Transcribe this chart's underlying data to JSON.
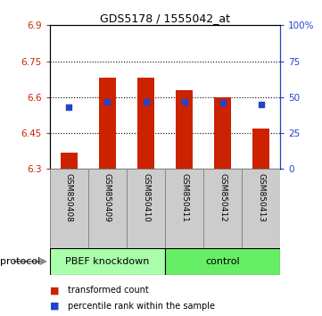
{
  "title": "GDS5178 / 1555042_at",
  "samples": [
    "GSM850408",
    "GSM850409",
    "GSM850410",
    "GSM850411",
    "GSM850412",
    "GSM850413"
  ],
  "bar_values": [
    6.37,
    6.68,
    6.68,
    6.63,
    6.6,
    6.47
  ],
  "bar_baseline": 6.3,
  "blue_values": [
    0.43,
    0.47,
    0.47,
    0.47,
    0.46,
    0.45
  ],
  "bar_color": "#cc2200",
  "blue_color": "#2244cc",
  "ylim_left": [
    6.3,
    6.9
  ],
  "ylim_right": [
    0,
    1.0
  ],
  "yticks_left": [
    6.3,
    6.45,
    6.6,
    6.75,
    6.9
  ],
  "yticks_right": [
    0,
    0.25,
    0.5,
    0.75,
    1.0
  ],
  "ytick_labels_left": [
    "6.3",
    "6.45",
    "6.6",
    "6.75",
    "6.9"
  ],
  "ytick_labels_right": [
    "0",
    "25",
    "50",
    "75",
    "100%"
  ],
  "groups": [
    {
      "label": "PBEF knockdown",
      "start": 0,
      "end": 3,
      "color": "#aaffaa"
    },
    {
      "label": "control",
      "start": 3,
      "end": 6,
      "color": "#66ee66"
    }
  ],
  "protocol_label": "protocol",
  "legend_items": [
    {
      "color": "#cc2200",
      "label": "transformed count"
    },
    {
      "color": "#2244cc",
      "label": "percentile rank within the sample"
    }
  ],
  "bar_width": 0.45,
  "blue_marker_size": 5,
  "background_color": "#ffffff",
  "left_axis_color": "#cc2200",
  "right_axis_color": "#2244cc",
  "grid_yticks": [
    6.45,
    6.6,
    6.75
  ],
  "sample_cell_color": "#cccccc",
  "sample_cell_border": "#888888"
}
